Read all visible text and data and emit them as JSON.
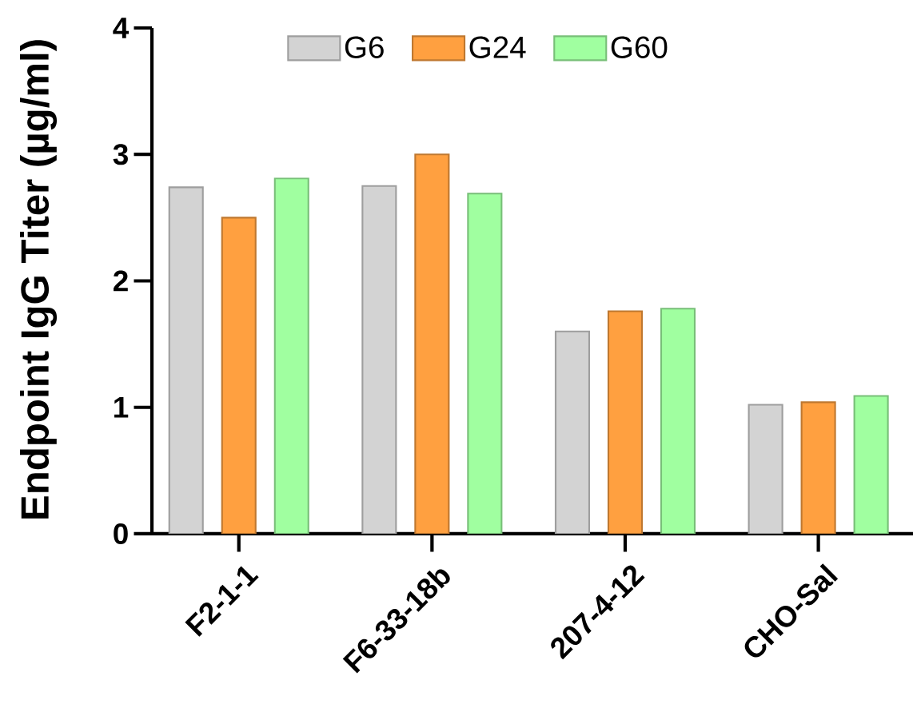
{
  "chart_data": {
    "type": "bar",
    "ylabel": "Endpoint IgG  Titer (µg/ml)",
    "categories": [
      "F2-1-1",
      "F6-33-18b",
      "207-4-12",
      "CHO-Sal"
    ],
    "series": [
      {
        "name": "G6",
        "color": "#d3d3d3",
        "values": [
          2.74,
          2.75,
          1.6,
          1.02
        ]
      },
      {
        "name": "G24",
        "color": "#ffa040",
        "values": [
          2.5,
          3.0,
          1.76,
          1.04
        ]
      },
      {
        "name": "G60",
        "color": "#a0ffa0",
        "values": [
          2.81,
          2.69,
          1.78,
          1.09
        ]
      }
    ],
    "ylim": [
      0,
      4
    ],
    "yticks": [
      0,
      1,
      2,
      3,
      4
    ],
    "grid": false,
    "legend": "top"
  }
}
